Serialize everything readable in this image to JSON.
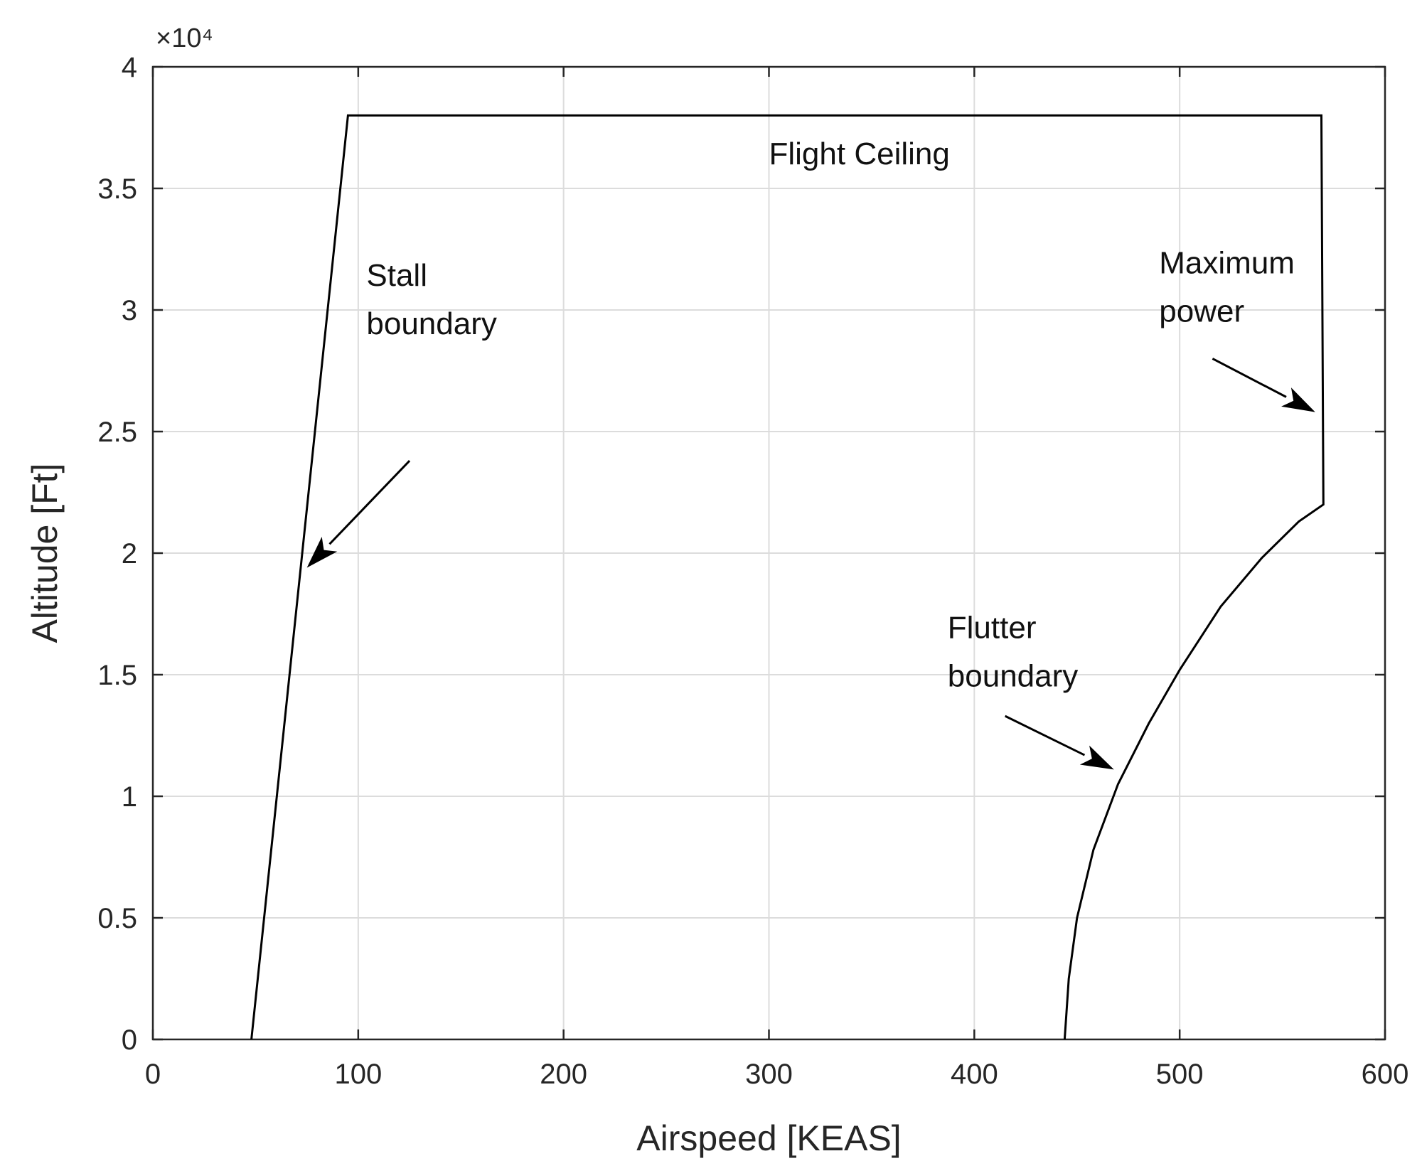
{
  "chart_data": {
    "type": "line",
    "title": "",
    "xlabel": "Airspeed [KEAS]",
    "ylabel": "Altitude [Ft]",
    "xlim": [
      0,
      600
    ],
    "ylim": [
      0,
      40000
    ],
    "x_ticks": [
      0,
      100,
      200,
      300,
      400,
      500,
      600
    ],
    "y_ticks": [
      0,
      5000,
      10000,
      15000,
      20000,
      25000,
      30000,
      35000,
      40000
    ],
    "x_tick_labels": [
      "0",
      "100",
      "200",
      "300",
      "400",
      "500",
      "600"
    ],
    "y_tick_labels": [
      "0",
      "0.5",
      "1",
      "1.5",
      "2",
      "2.5",
      "3",
      "3.5",
      "4"
    ],
    "y_multiplier": "×10⁴",
    "grid": true,
    "series": [
      {
        "points": [
          {
            "x": 48,
            "y": 0
          },
          {
            "x": 95,
            "y": 38000
          },
          {
            "x": 569,
            "y": 38000
          },
          {
            "x": 570,
            "y": 22000
          },
          {
            "x": 558,
            "y": 21300
          },
          {
            "x": 540,
            "y": 19800
          },
          {
            "x": 520,
            "y": 17800
          },
          {
            "x": 500,
            "y": 15200
          },
          {
            "x": 485,
            "y": 13000
          },
          {
            "x": 470,
            "y": 10500
          },
          {
            "x": 458,
            "y": 7800
          },
          {
            "x": 450,
            "y": 5000
          },
          {
            "x": 446,
            "y": 2500
          },
          {
            "x": 444,
            "y": 0
          }
        ]
      }
    ],
    "annotations": [
      {
        "lines": [
          "Flight Ceiling"
        ],
        "x": 300,
        "y": 36000
      },
      {
        "lines": [
          "Stall",
          "boundary"
        ],
        "x": 104,
        "y": 31000,
        "arrow_from": {
          "x": 125,
          "y": 23800
        },
        "arrow_to": {
          "x": 75,
          "y": 19400
        }
      },
      {
        "lines": [
          "Maximum",
          "power"
        ],
        "x": 490,
        "y": 31500,
        "arrow_from": {
          "x": 516,
          "y": 28000
        },
        "arrow_to": {
          "x": 566,
          "y": 25800
        }
      },
      {
        "lines": [
          "Flutter",
          "boundary"
        ],
        "x": 387,
        "y": 16500,
        "arrow_from": {
          "x": 415,
          "y": 13300
        },
        "arrow_to": {
          "x": 468,
          "y": 11100
        }
      }
    ]
  }
}
